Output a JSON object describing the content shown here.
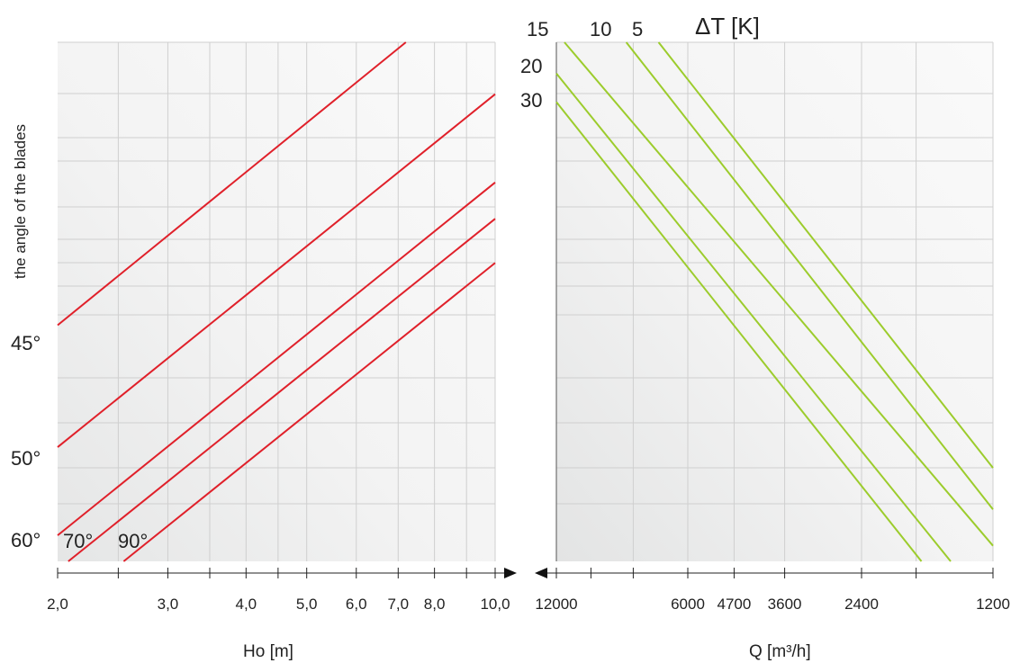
{
  "chart_data": [
    {
      "type": "line",
      "panel": "left",
      "xlabel": "Ho [m]",
      "ylabel": "the angle of the blades",
      "x_scale": "log",
      "xlim": [
        2.0,
        10.0
      ],
      "x_ticks": [
        "2,0",
        "3,0",
        "4,0",
        "5,0",
        "6,0",
        "7,0",
        "8,0",
        "10,0"
      ],
      "y_annotations": [
        "45°",
        "50°",
        "60°"
      ],
      "series_labels": [
        "70°",
        "90°"
      ],
      "line_color": "#e0202a",
      "grid": true,
      "series": [
        {
          "x": [
            2.0,
            7.2
          ],
          "y": [
            0.455,
            1.0
          ]
        },
        {
          "x": [
            2.0,
            10.0
          ],
          "y": [
            0.22,
            0.9
          ]
        },
        {
          "x": [
            2.0,
            10.0
          ],
          "y": [
            0.05,
            0.73
          ]
        },
        {
          "x": [
            2.08,
            10.0
          ],
          "y": [
            0.0,
            0.66
          ]
        },
        {
          "x": [
            2.55,
            10.0
          ],
          "y": [
            0.0,
            0.575
          ]
        }
      ]
    },
    {
      "type": "line",
      "panel": "right",
      "title": "ΔT [K]",
      "xlabel": "Q [m³/h]",
      "x_scale": "log-reversed",
      "xlim": [
        12000,
        1200
      ],
      "x_ticks": [
        "12000",
        "6000",
        "4700",
        "3600",
        "2400",
        "1200"
      ],
      "series_labels": [
        "15",
        "10",
        "5",
        "20",
        "30"
      ],
      "line_color": "#9ccc2c",
      "grid": true,
      "series": [
        {
          "name": "5",
          "x": [
            7000,
            1200
          ],
          "y": [
            1.0,
            0.18
          ]
        },
        {
          "name": "10",
          "x": [
            8300,
            1200
          ],
          "y": [
            1.0,
            0.1
          ]
        },
        {
          "name": "15",
          "x": [
            11500,
            1200
          ],
          "y": [
            1.0,
            0.03
          ]
        },
        {
          "name": "20",
          "x": [
            12000,
            1500
          ],
          "y": [
            0.94,
            0.0
          ]
        },
        {
          "name": "30",
          "x": [
            12000,
            1750
          ],
          "y": [
            0.885,
            0.0
          ]
        }
      ]
    }
  ]
}
